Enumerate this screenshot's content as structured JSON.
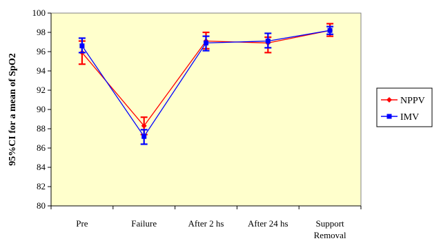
{
  "chart_data": {
    "type": "line",
    "title": "",
    "xlabel": "",
    "ylabel": "95%CI for a mean of SpO2",
    "ylim": [
      80,
      100
    ],
    "yticks": [
      80,
      82,
      84,
      86,
      88,
      90,
      92,
      94,
      96,
      98,
      100
    ],
    "categories": [
      [
        "Pre"
      ],
      [
        "Failure"
      ],
      [
        "After 2 hs"
      ],
      [
        "After 24 hs"
      ],
      [
        "Support",
        "Removal"
      ]
    ],
    "grid": false,
    "legend_position": "right",
    "series": [
      {
        "name": "NPPV",
        "color": "#ff0000",
        "marker": "diamond",
        "mean": [
          95.9,
          88.3,
          97.1,
          96.9,
          98.2
        ],
        "ci_low": [
          94.7,
          87.4,
          96.3,
          95.9,
          97.6
        ],
        "ci_high": [
          97.1,
          89.2,
          98.0,
          97.5,
          98.9
        ]
      },
      {
        "name": "IMV",
        "color": "#0000ff",
        "marker": "square",
        "mean": [
          96.6,
          87.2,
          96.9,
          97.1,
          98.2
        ],
        "ci_low": [
          95.9,
          86.4,
          96.1,
          96.4,
          97.8
        ],
        "ci_high": [
          97.4,
          87.9,
          97.6,
          97.9,
          98.6
        ]
      }
    ],
    "plot_background": "#ffffcc"
  }
}
